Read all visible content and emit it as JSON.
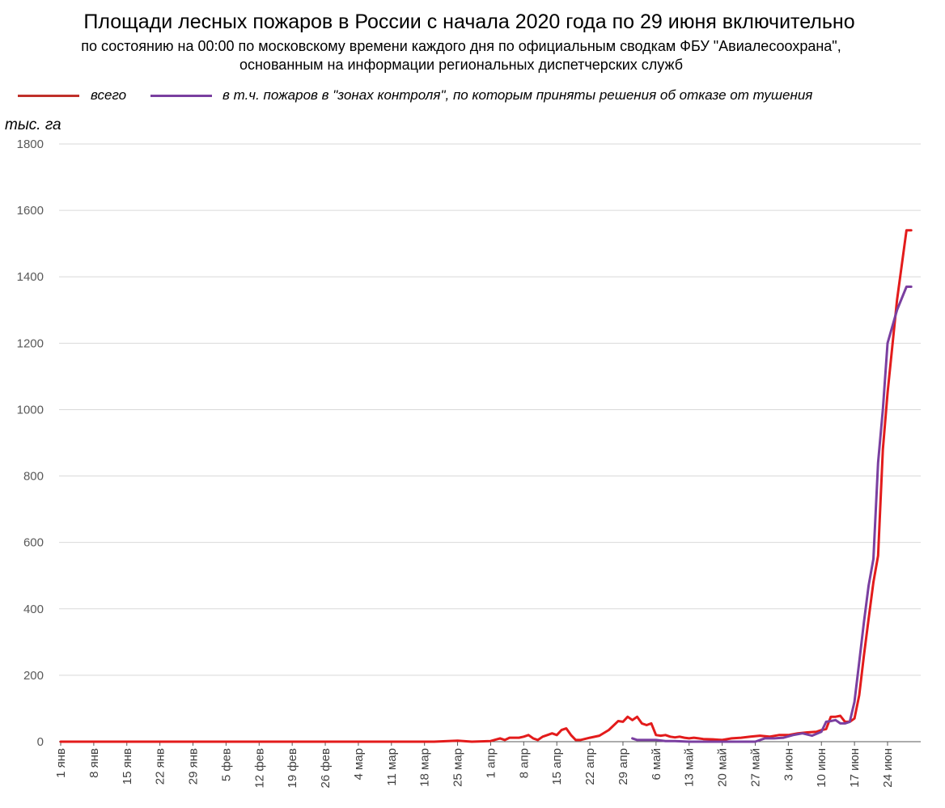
{
  "header": {
    "title": "Площади лесных пожаров в России с начала 2020 года по 29 июня включительно",
    "subtitle_line1": "по состоянию на 00:00 по московскому времени каждого дня по официальным сводкам ФБУ \"Авиалесоохрана\",",
    "subtitle_line2": "основанным на информации региональных диспетчерских служб"
  },
  "legend": {
    "total_label": "всего",
    "control_label": "в т.ч. пожаров в \"зонах контроля\", по которым приняты решения об отказе от тушения"
  },
  "colors": {
    "total": "#e31b1b",
    "control": "#7a3fa0",
    "grid": "#d9d9d9",
    "axis": "#595959"
  },
  "chart_data": {
    "type": "line",
    "title": "Площади лесных пожаров в России с начала 2020 года по 29 июня включительно",
    "ylabel": "тыс. га",
    "ylim": [
      0,
      1800
    ],
    "yticks": [
      "0",
      "200",
      "400",
      "600",
      "800",
      "1000",
      "1200",
      "1400",
      "1600",
      "1800"
    ],
    "xlim": [
      "2020-01-01",
      "2020-06-29"
    ],
    "xticks": [
      {
        "date": "2020-01-01",
        "label": "1 янв"
      },
      {
        "date": "2020-01-08",
        "label": "8 янв"
      },
      {
        "date": "2020-01-15",
        "label": "15 янв"
      },
      {
        "date": "2020-01-22",
        "label": "22 янв"
      },
      {
        "date": "2020-01-29",
        "label": "29 янв"
      },
      {
        "date": "2020-02-05",
        "label": "5 фев"
      },
      {
        "date": "2020-02-12",
        "label": "12 фев"
      },
      {
        "date": "2020-02-19",
        "label": "19 фев"
      },
      {
        "date": "2020-02-26",
        "label": "26 фев"
      },
      {
        "date": "2020-03-04",
        "label": "4 мар"
      },
      {
        "date": "2020-03-11",
        "label": "11 мар"
      },
      {
        "date": "2020-03-18",
        "label": "18 мар"
      },
      {
        "date": "2020-03-25",
        "label": "25 мар"
      },
      {
        "date": "2020-04-01",
        "label": "1 апр"
      },
      {
        "date": "2020-04-08",
        "label": "8 апр"
      },
      {
        "date": "2020-04-15",
        "label": "15 апр"
      },
      {
        "date": "2020-04-22",
        "label": "22 апр"
      },
      {
        "date": "2020-04-29",
        "label": "29 апр"
      },
      {
        "date": "2020-05-06",
        "label": "6 май"
      },
      {
        "date": "2020-05-13",
        "label": "13 май"
      },
      {
        "date": "2020-05-20",
        "label": "20 май"
      },
      {
        "date": "2020-05-27",
        "label": "27 май"
      },
      {
        "date": "2020-06-03",
        "label": "3 июн"
      },
      {
        "date": "2020-06-10",
        "label": "10 июн"
      },
      {
        "date": "2020-06-17",
        "label": "17 июн"
      },
      {
        "date": "2020-06-24",
        "label": "24 июн"
      }
    ],
    "grid": true,
    "legend_position": "top",
    "series": [
      {
        "name": "всего",
        "x": [
          "2020-01-01",
          "2020-03-20",
          "2020-03-25",
          "2020-03-28",
          "2020-04-01",
          "2020-04-03",
          "2020-04-04",
          "2020-04-05",
          "2020-04-07",
          "2020-04-08",
          "2020-04-09",
          "2020-04-10",
          "2020-04-11",
          "2020-04-12",
          "2020-04-13",
          "2020-04-14",
          "2020-04-15",
          "2020-04-16",
          "2020-04-17",
          "2020-04-18",
          "2020-04-19",
          "2020-04-20",
          "2020-04-22",
          "2020-04-24",
          "2020-04-26",
          "2020-04-28",
          "2020-04-29",
          "2020-04-30",
          "2020-05-01",
          "2020-05-02",
          "2020-05-03",
          "2020-05-04",
          "2020-05-05",
          "2020-05-06",
          "2020-05-07",
          "2020-05-08",
          "2020-05-09",
          "2020-05-10",
          "2020-05-11",
          "2020-05-12",
          "2020-05-13",
          "2020-05-14",
          "2020-05-15",
          "2020-05-16",
          "2020-05-18",
          "2020-05-20",
          "2020-05-22",
          "2020-05-24",
          "2020-05-26",
          "2020-05-28",
          "2020-05-30",
          "2020-06-01",
          "2020-06-03",
          "2020-06-05",
          "2020-06-07",
          "2020-06-09",
          "2020-06-10",
          "2020-06-11",
          "2020-06-12",
          "2020-06-13",
          "2020-06-14",
          "2020-06-15",
          "2020-06-16",
          "2020-06-17",
          "2020-06-18",
          "2020-06-19",
          "2020-06-20",
          "2020-06-21",
          "2020-06-22",
          "2020-06-23",
          "2020-06-24",
          "2020-06-26",
          "2020-06-28",
          "2020-06-29"
        ],
        "y": [
          0,
          0,
          3,
          0,
          2,
          10,
          5,
          12,
          12,
          15,
          20,
          10,
          5,
          15,
          20,
          25,
          20,
          35,
          40,
          20,
          5,
          5,
          12,
          18,
          35,
          62,
          60,
          75,
          65,
          75,
          55,
          50,
          55,
          20,
          18,
          20,
          15,
          13,
          15,
          12,
          10,
          12,
          10,
          8,
          7,
          5,
          10,
          12,
          15,
          18,
          15,
          20,
          20,
          25,
          28,
          30,
          35,
          38,
          75,
          75,
          78,
          60,
          60,
          70,
          140,
          260,
          370,
          480,
          560,
          880,
          1050,
          1330,
          1540,
          1540
        ]
      },
      {
        "name": "в т.ч. пожаров в \"зонах контроля\", по которым приняты решения об отказе от тушения",
        "x": [
          "2020-05-01",
          "2020-05-02",
          "2020-05-05",
          "2020-05-06",
          "2020-05-08",
          "2020-05-10",
          "2020-05-13",
          "2020-05-20",
          "2020-05-27",
          "2020-05-29",
          "2020-05-31",
          "2020-06-02",
          "2020-06-04",
          "2020-06-06",
          "2020-06-08",
          "2020-06-10",
          "2020-06-11",
          "2020-06-12",
          "2020-06-13",
          "2020-06-14",
          "2020-06-15",
          "2020-06-16",
          "2020-06-17",
          "2020-06-18",
          "2020-06-19",
          "2020-06-20",
          "2020-06-21",
          "2020-06-22",
          "2020-06-23",
          "2020-06-24",
          "2020-06-26",
          "2020-06-28",
          "2020-06-29"
        ],
        "y": [
          10,
          5,
          5,
          5,
          2,
          2,
          0,
          0,
          0,
          10,
          10,
          12,
          20,
          25,
          18,
          30,
          60,
          62,
          65,
          55,
          55,
          60,
          120,
          240,
          360,
          470,
          550,
          840,
          1000,
          1200,
          1300,
          1370,
          1370
        ]
      }
    ]
  }
}
